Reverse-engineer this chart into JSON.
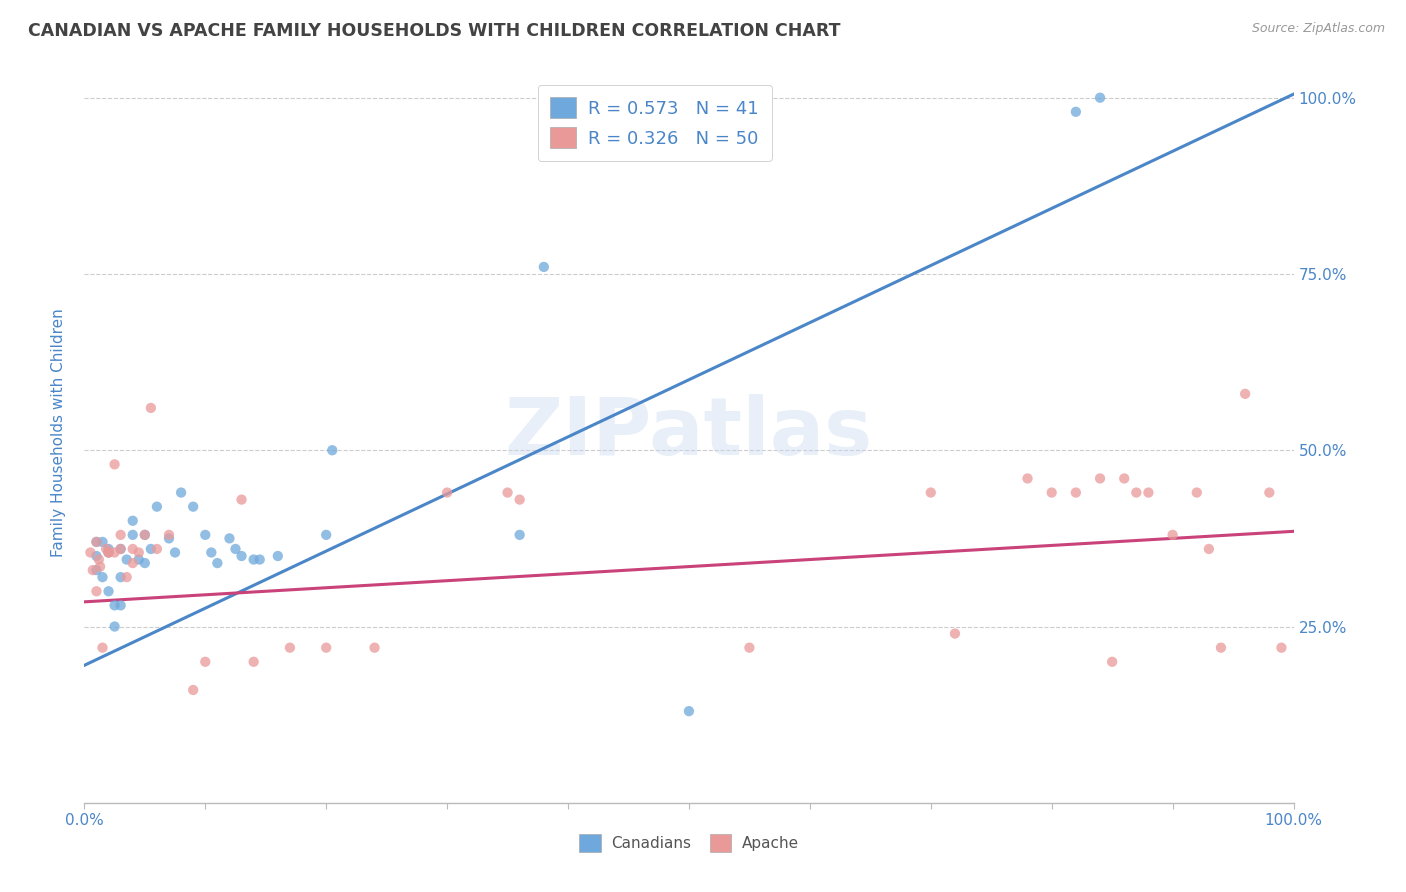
{
  "title": "CANADIAN VS APACHE FAMILY HOUSEHOLDS WITH CHILDREN CORRELATION CHART",
  "source": "Source: ZipAtlas.com",
  "ylabel": "Family Households with Children",
  "watermark": "ZIPatlas",
  "legend_canadian": "Canadians",
  "legend_apache": "Apache",
  "R_canadian": 0.573,
  "N_canadian": 41,
  "R_apache": 0.326,
  "N_apache": 50,
  "canadian_color": "#6fa8dc",
  "apache_color": "#ea9999",
  "canadian_line_color": "#4a86c8",
  "apache_line_color": "#c9427a",
  "background_color": "#ffffff",
  "title_color": "#434343",
  "source_color": "#999999",
  "axis_label_color": "#4a86c8",
  "tick_color": "#4a86c8",
  "grid_color": "#cccccc",
  "legend_text_color": "#4a86c8",
  "canadians_x": [
    0.01,
    0.01,
    0.01,
    0.015,
    0.015,
    0.02,
    0.02,
    0.02,
    0.025,
    0.025,
    0.03,
    0.03,
    0.03,
    0.035,
    0.04,
    0.04,
    0.045,
    0.05,
    0.05,
    0.055,
    0.06,
    0.07,
    0.075,
    0.08,
    0.09,
    0.1,
    0.105,
    0.11,
    0.12,
    0.125,
    0.13,
    0.14,
    0.145,
    0.16,
    0.2,
    0.205,
    0.36,
    0.38,
    0.5,
    0.82,
    0.84
  ],
  "canadians_y": [
    0.33,
    0.35,
    0.37,
    0.37,
    0.32,
    0.355,
    0.36,
    0.3,
    0.28,
    0.25,
    0.36,
    0.32,
    0.28,
    0.345,
    0.4,
    0.38,
    0.345,
    0.38,
    0.34,
    0.36,
    0.42,
    0.375,
    0.355,
    0.44,
    0.42,
    0.38,
    0.355,
    0.34,
    0.375,
    0.36,
    0.35,
    0.345,
    0.345,
    0.35,
    0.38,
    0.5,
    0.38,
    0.76,
    0.13,
    0.98,
    1.0
  ],
  "apache_x": [
    0.005,
    0.007,
    0.01,
    0.01,
    0.012,
    0.013,
    0.015,
    0.018,
    0.02,
    0.02,
    0.025,
    0.025,
    0.03,
    0.03,
    0.035,
    0.04,
    0.04,
    0.045,
    0.05,
    0.055,
    0.06,
    0.07,
    0.09,
    0.1,
    0.13,
    0.14,
    0.17,
    0.2,
    0.24,
    0.3,
    0.35,
    0.36,
    0.55,
    0.7,
    0.72,
    0.78,
    0.8,
    0.82,
    0.84,
    0.85,
    0.86,
    0.87,
    0.88,
    0.9,
    0.92,
    0.93,
    0.94,
    0.96,
    0.98,
    0.99
  ],
  "apache_y": [
    0.355,
    0.33,
    0.37,
    0.3,
    0.345,
    0.335,
    0.22,
    0.36,
    0.355,
    0.355,
    0.355,
    0.48,
    0.38,
    0.36,
    0.32,
    0.36,
    0.34,
    0.355,
    0.38,
    0.56,
    0.36,
    0.38,
    0.16,
    0.2,
    0.43,
    0.2,
    0.22,
    0.22,
    0.22,
    0.44,
    0.44,
    0.43,
    0.22,
    0.44,
    0.24,
    0.46,
    0.44,
    0.44,
    0.46,
    0.2,
    0.46,
    0.44,
    0.44,
    0.38,
    0.44,
    0.36,
    0.22,
    0.58,
    0.44,
    0.22
  ],
  "canadian_line_x": [
    0.0,
    1.0
  ],
  "canadian_line_y": [
    0.195,
    1.005
  ],
  "apache_line_x": [
    0.0,
    1.0
  ],
  "apache_line_y": [
    0.285,
    0.385
  ],
  "xlim": [
    0.0,
    1.0
  ],
  "ylim": [
    0.0,
    1.05
  ],
  "yticks": [
    0.0,
    0.25,
    0.5,
    0.75,
    1.0
  ],
  "yticklabels_right": [
    "",
    "25.0%",
    "50.0%",
    "75.0%",
    "100.0%"
  ],
  "xtick_left_label": "0.0%",
  "xtick_right_label": "100.0%"
}
